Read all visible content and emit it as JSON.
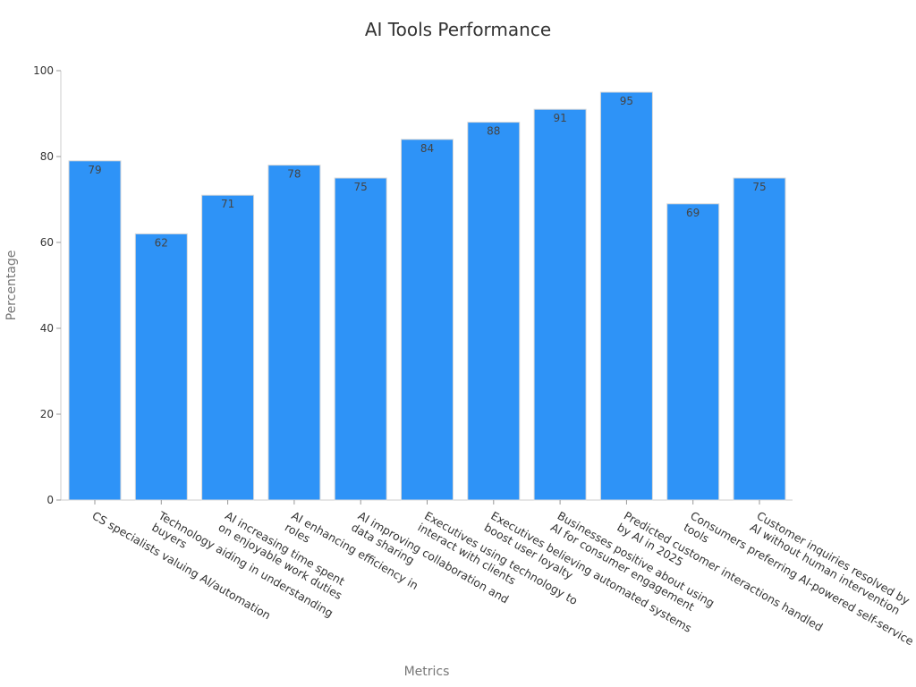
{
  "chart_data": {
    "type": "bar",
    "title": "AI Tools Performance",
    "xlabel": "Metrics",
    "ylabel": "Percentage",
    "ylim": [
      0,
      100
    ],
    "yticks": [
      0,
      20,
      40,
      60,
      80,
      100
    ],
    "grid": false,
    "bar_color": "#2e93f7",
    "categories": [
      [
        "CS specialists valuing AI/automation"
      ],
      [
        "Technology aiding in understanding",
        "buyers"
      ],
      [
        "AI increasing time spent",
        "on enjoyable work duties"
      ],
      [
        "AI enhancing efficiency in",
        "roles"
      ],
      [
        "AI improving collaboration and",
        "data sharing"
      ],
      [
        "Executives using technology to",
        "interact with clients"
      ],
      [
        "Executives believing automated systems",
        "boost user loyalty"
      ],
      [
        "Businesses positive about using",
        "AI for consumer engagement"
      ],
      [
        "Predicted customer interactions handled",
        "by AI in 2025"
      ],
      [
        "Consumers preferring AI-powered self-service",
        "tools"
      ],
      [
        "Customer inquiries resolved by",
        "AI without human intervention"
      ]
    ],
    "values": [
      79,
      62,
      71,
      78,
      75,
      84,
      88,
      91,
      95,
      69,
      75
    ]
  }
}
